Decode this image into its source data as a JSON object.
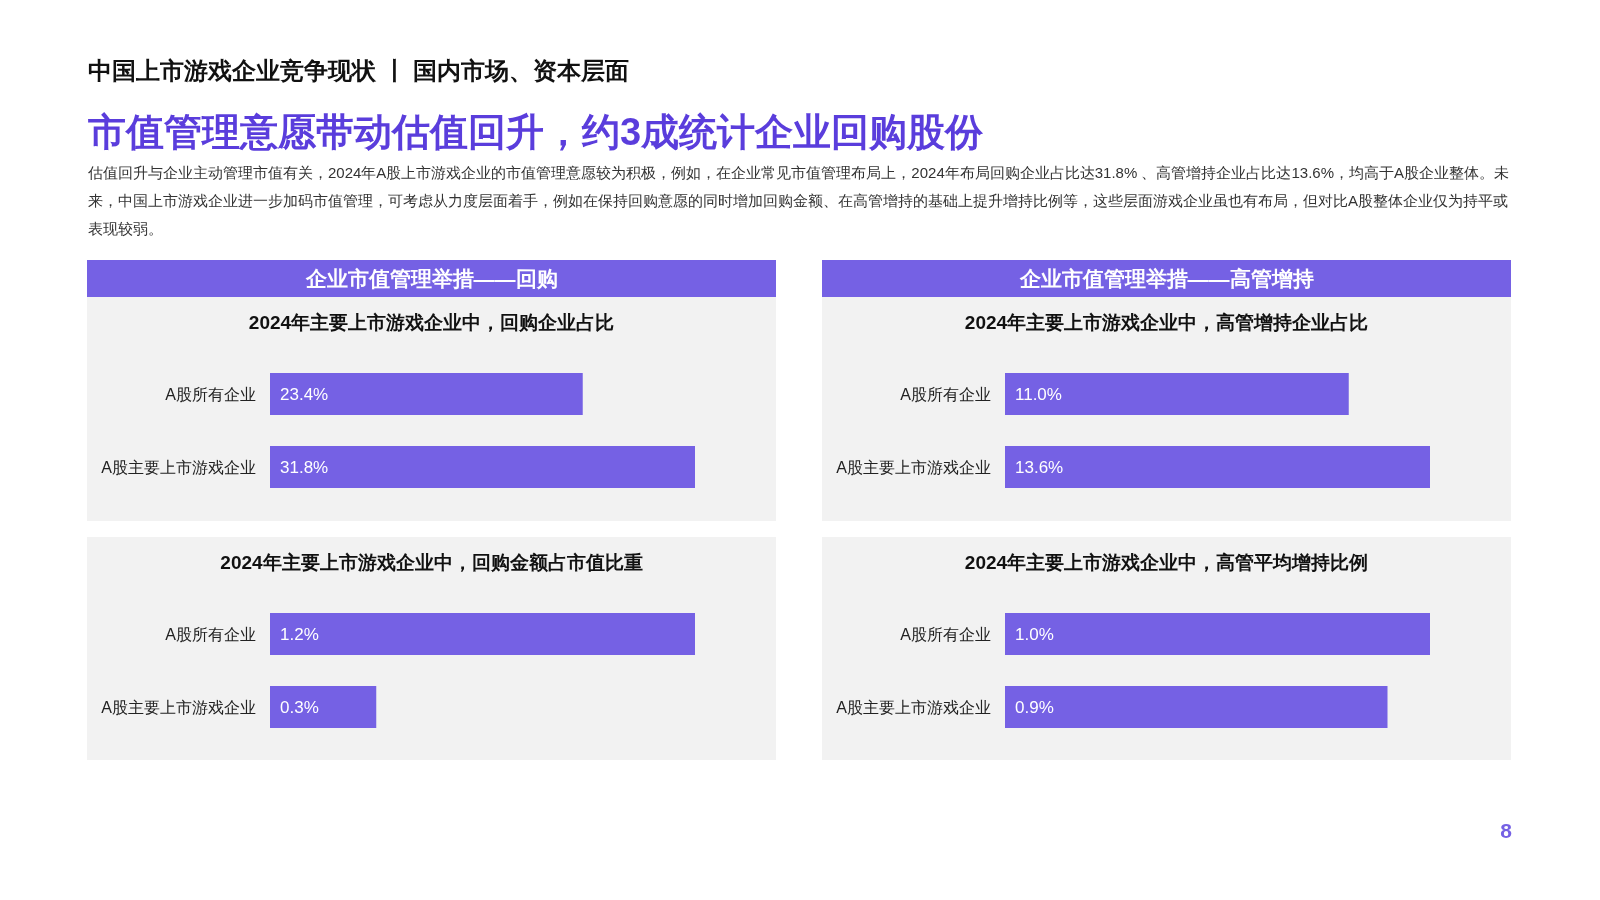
{
  "chart_data": [
    {
      "type": "bar",
      "orientation": "horizontal",
      "title": "2024年主要上市游戏企业中，回购企业占比",
      "categories": [
        "A股所有企业",
        "A股主要上市游戏企业"
      ],
      "values": [
        23.4,
        31.8
      ],
      "value_labels": [
        "23.4%",
        "31.8%"
      ],
      "color": "#7561e4",
      "tick_labels": "y",
      "annotations": [
        "中国上市游戏企业竞争现状 丨 国内市场、资本层面",
        "市值管理意愿带动估值回升，约3成统计企业回购股份",
        "估值回升与企业主动管理市值有关，2024年A股上市游戏企业的市值管理意愿较为积极，例如，在企业常见市值管理布局上，2024年布局回购企业占比达31.8% 、高管增持企业占比达13.6%，均高于A股企业整体。未来，中国上市游戏企业进一步加码市值管理，可考虑从力度层面着手，例如在保持回购意愿的同时增加回购金额、在高管增持的基础上提升增持比例等，这些层面游戏企业虽也有布局，但对比A股整体企业仅为持平或表现较弱。",
        "企业市值管理举措——回购",
        "8"
      ]
    },
    {
      "type": "bar",
      "orientation": "horizontal",
      "title": "2024年主要上市游戏企业中，高管增持企业占比",
      "categories": [
        "A股所有企业",
        "A股主要上市游戏企业"
      ],
      "values": [
        11.0,
        13.6
      ],
      "value_labels": [
        "11.0%",
        "13.6%"
      ],
      "color": "#7561e4",
      "tick_labels": "y",
      "annotations": [
        "企业市值管理举措——高管增持"
      ]
    },
    {
      "type": "bar",
      "orientation": "horizontal",
      "title": "2024年主要上市游戏企业中，回购金额占市值比重",
      "categories": [
        "A股所有企业",
        "A股主要上市游戏企业"
      ],
      "values": [
        1.2,
        0.3
      ],
      "value_labels": [
        "1.2%",
        "0.3%"
      ],
      "color": "#7561e4",
      "tick_labels": "y"
    },
    {
      "type": "bar",
      "orientation": "horizontal",
      "title": "2024年主要上市游戏企业中，高管平均增持比例",
      "categories": [
        "A股所有企业",
        "A股主要上市游戏企业"
      ],
      "values": [
        1.0,
        0.9
      ],
      "value_labels": [
        "1.0%",
        "0.9%"
      ],
      "color": "#7561e4",
      "tick_labels": "y"
    }
  ]
}
